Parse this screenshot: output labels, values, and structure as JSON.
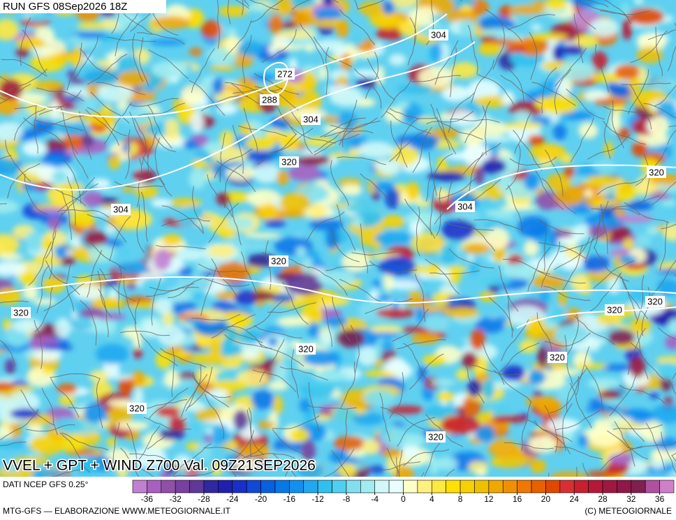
{
  "header": {
    "run": "RUN GFS 08Sep2026 18Z"
  },
  "map": {
    "contour_labels": [
      304,
      272,
      288,
      304,
      320,
      320,
      304,
      304,
      320,
      320,
      320,
      320,
      320,
      320,
      320,
      320
    ]
  },
  "footer": {
    "title": "VVEL + GPT + WIND Z700 Val. 09Z21SEP2026",
    "source": "DATI NCEP GFS 0.25°",
    "credit": "MTG-GFS — ELABORAZIONE WWW.METEOGIORNALE.IT",
    "copyright": "(C) METEOGIORNALE"
  },
  "colorbar": {
    "limits": [
      -38,
      38
    ],
    "ticks": [
      -36,
      -32,
      -28,
      -24,
      -20,
      -16,
      -12,
      -8,
      -4,
      0,
      4,
      8,
      12,
      16,
      20,
      24,
      28,
      32,
      36
    ],
    "colors": [
      "#c080d0",
      "#a860c0",
      "#9050a8",
      "#7840a0",
      "#603898",
      "#3028a0",
      "#2020b0",
      "#1830c8",
      "#1048d8",
      "#0860e0",
      "#0878e8",
      "#1090f0",
      "#20a8f0",
      "#30c0f0",
      "#50d0f0",
      "#80e0f0",
      "#a0ecf0",
      "#d0f8f8",
      "#e8ffff",
      "#ffffc8",
      "#fff080",
      "#ffe840",
      "#ffe000",
      "#f8d000",
      "#f0c000",
      "#f0a800",
      "#f09000",
      "#f07800",
      "#e86000",
      "#e04800",
      "#d83030",
      "#c82030",
      "#b81838",
      "#a01840",
      "#901848",
      "#802050",
      "#b050a0",
      "#d080c8"
    ]
  }
}
